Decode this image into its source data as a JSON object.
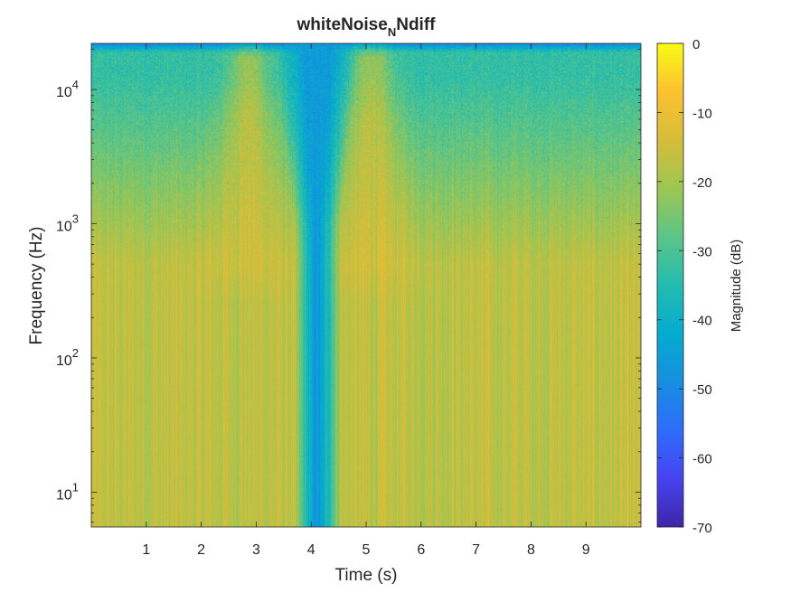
{
  "chart_data": {
    "type": "heatmap",
    "title": {
      "main": "whiteNoise",
      "subscript": "N",
      "suffix": "Ndiff"
    },
    "xlabel": "Time (s)",
    "ylabel": "Frequency (Hz)",
    "xlim": [
      0,
      10
    ],
    "ylim": [
      5.5,
      22050
    ],
    "y_scale": "log",
    "x_ticks": [
      1,
      2,
      3,
      4,
      5,
      6,
      7,
      8,
      9
    ],
    "x_tick_labels": [
      "1",
      "2",
      "3",
      "4",
      "5",
      "6",
      "7",
      "8",
      "9"
    ],
    "y_ticks": [
      {
        "value": 10,
        "base": "10",
        "exp": "1"
      },
      {
        "value": 100,
        "base": "10",
        "exp": "2"
      },
      {
        "value": 1000,
        "base": "10",
        "exp": "3"
      },
      {
        "value": 10000,
        "base": "10",
        "exp": "4"
      }
    ],
    "colorbar": {
      "label": "Magnitude (dB)",
      "range": [
        -70,
        0
      ],
      "ticks": [
        0,
        -10,
        -20,
        -30,
        -40,
        -50,
        -60,
        -70
      ],
      "tick_labels": [
        "0",
        "-10",
        "-20",
        "-30",
        "-40",
        "-50",
        "-60",
        "-70"
      ],
      "colormap": "parula",
      "colors": [
        "#3e26a8",
        "#4743f0",
        "#2f6cfa",
        "#168fe0",
        "#05abcf",
        "#23bcb0",
        "#5bc587",
        "#9dc653",
        "#d6bd3a",
        "#fcc131",
        "#f9fb14"
      ]
    },
    "description_of_field": {
      "low_freq_level_db": -17,
      "high_freq_level_db": -33,
      "notch_time_s": 4.1,
      "notch_level_db": -46,
      "bright_lobes_time_s": [
        2.85,
        5.1
      ],
      "top_band_level_db": -50
    }
  }
}
